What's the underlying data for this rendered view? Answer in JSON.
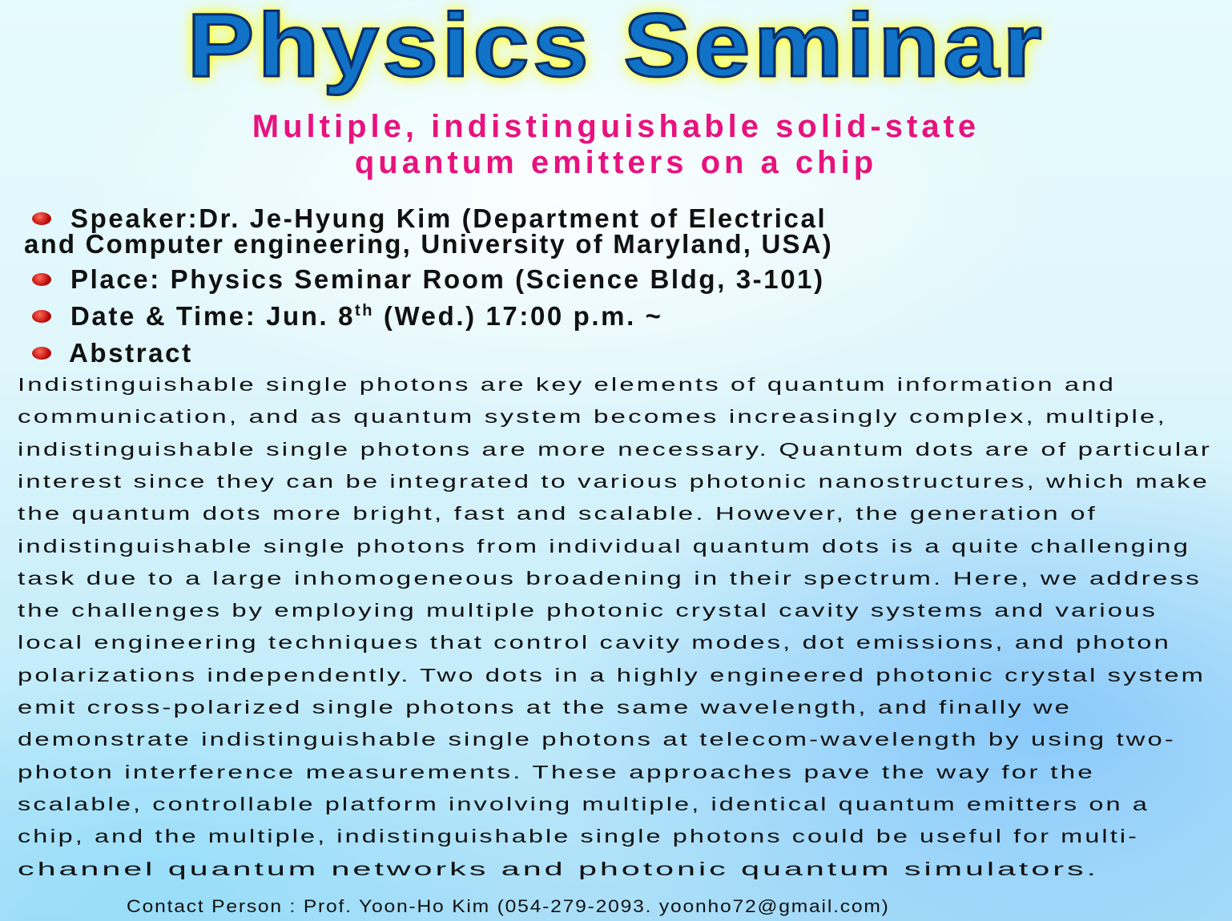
{
  "title": "Physics Seminar",
  "subtitle": [
    "Multiple, indistinguishable solid-state",
    "quantum emitters on a chip"
  ],
  "details": {
    "speaker_line1": "Speaker:Dr. Je-Hyung Kim (Department of Electrical",
    "speaker_line2": "and Computer engineering, University of Maryland, USA)",
    "place": "Place: Physics Seminar Room (Science Bldg, 3-101)",
    "date_pre": "Date & Time: Jun. 8",
    "date_sup": "th",
    "date_post": " (Wed.) 17:00 p.m. ~",
    "abstract_heading": "Abstract"
  },
  "abstract_lines": [
    "Indistinguishable single photons are key elements of quantum information and",
    "communication, and as quantum system becomes increasingly complex, multiple,",
    "indistinguishable single photons are more necessary.  Quantum dots are of particular",
    "interest since they can be integrated to various photonic nanostructures, which make",
    "the quantum dots more bright, fast and scalable.  However, the generation of",
    "indistinguishable single photons from individual quantum dots is a quite challenging",
    "task due to a large inhomogeneous broadening in their spectrum.  Here, we address",
    "the challenges by employing multiple photonic crystal cavity systems and various",
    "local engineering techniques that control cavity modes, dot emissions, and photon",
    "polarizations independently. Two dots in a highly engineered photonic crystal system",
    "emit cross-polarized single photons at the same wavelength, and finally we",
    "demonstrate indistinguishable single photons at telecom-wavelength by using two-",
    "photon interference measurements.  These approaches pave the way for the",
    "scalable, controllable platform involving multiple, identical quantum emitters on a",
    "chip, and the multiple, indistinguishable single photons could be useful for multi-",
    "channel quantum networks and photonic quantum simulators."
  ],
  "contact": "Contact Person : Prof. Yoon-Ho Kim (054-279-2093. yoonho72@gmail.com)",
  "colors": {
    "title": "#1173c8",
    "title_glow": "#ffff3a",
    "subtitle": "#e8127e",
    "bullet": "#c00000"
  }
}
